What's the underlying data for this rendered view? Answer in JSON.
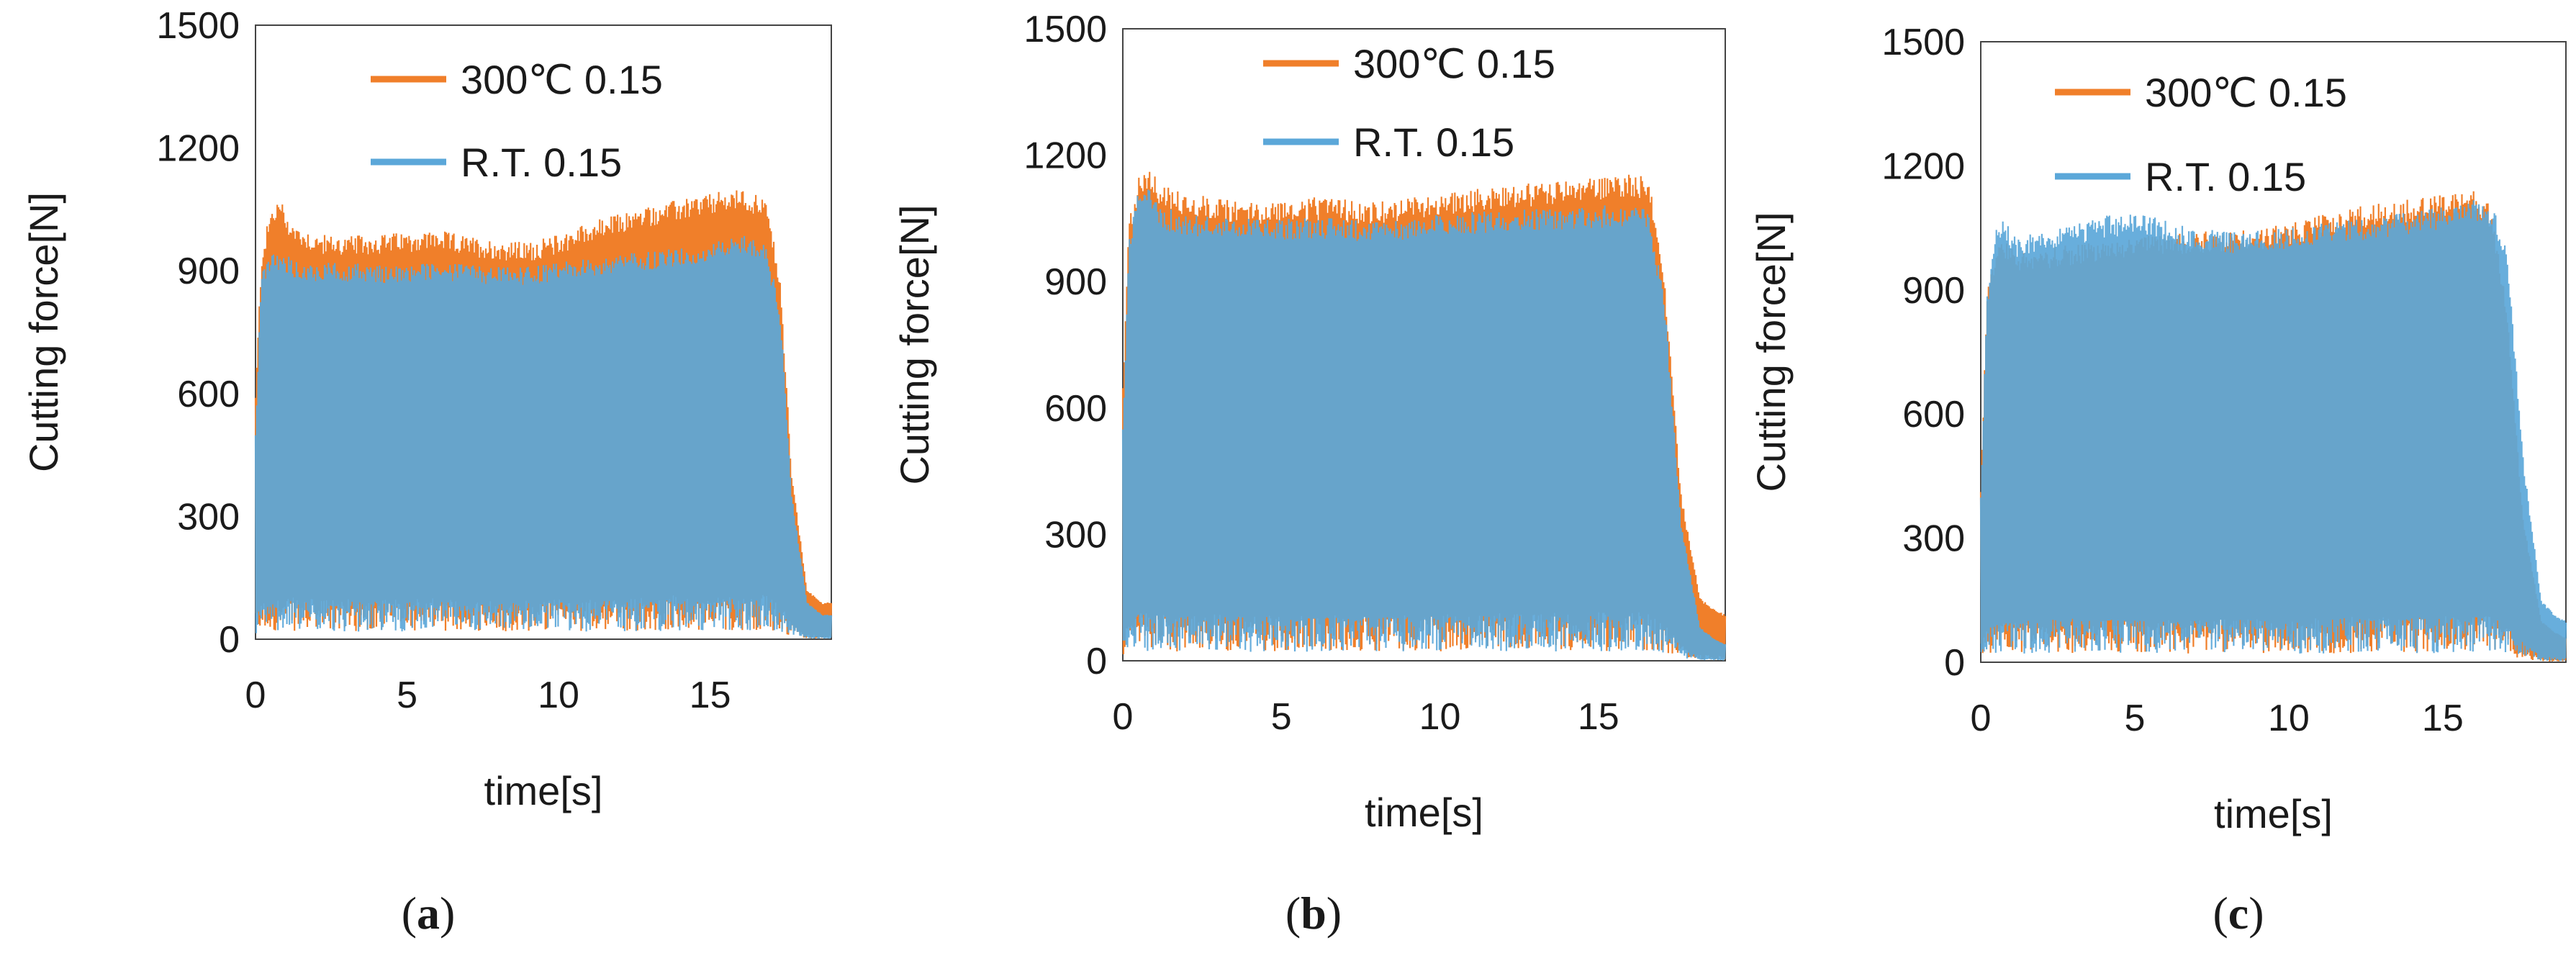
{
  "chart_data": [
    {
      "id": "a",
      "type": "line",
      "caption": "a",
      "xlabel": "time[s]",
      "ylabel": "Cutting force[N]",
      "xlim": [
        0,
        19
      ],
      "ylim": [
        0,
        1500
      ],
      "xticks": [
        "0",
        "5",
        "10",
        "15"
      ],
      "yticks": [
        "0",
        "300",
        "600",
        "900",
        "1200",
        "1500"
      ],
      "legend_position": "top-center",
      "series": [
        {
          "name": "300℃ 0.15",
          "color": "#f07f2a",
          "envelope_x": [
            0,
            0.2,
            0.5,
            0.8,
            1.2,
            2,
            3,
            4,
            5,
            6,
            7,
            8,
            9,
            10,
            11,
            12,
            13,
            14,
            15,
            16,
            16.8,
            17.3,
            17.7,
            18.2,
            18.7,
            19
          ],
          "envelope_y": [
            600,
            950,
            1050,
            1080,
            1020,
            990,
            985,
            990,
            995,
            1000,
            985,
            975,
            970,
            990,
            1020,
            1040,
            1060,
            1075,
            1090,
            1100,
            1085,
            900,
            400,
            120,
            90,
            90
          ]
        },
        {
          "name": "R.T. 0.15",
          "color": "#5ba7d9",
          "envelope_x": [
            0,
            0.2,
            0.5,
            0.8,
            1.2,
            2,
            3,
            4,
            5,
            6,
            7,
            8,
            9,
            10,
            11,
            12,
            13,
            14,
            15,
            16,
            16.8,
            17.3,
            17.7,
            18.2,
            18.7,
            19
          ],
          "envelope_y": [
            500,
            900,
            940,
            950,
            930,
            920,
            920,
            915,
            915,
            920,
            915,
            910,
            910,
            920,
            930,
            940,
            950,
            955,
            965,
            990,
            970,
            820,
            350,
            90,
            60,
            60
          ]
        }
      ]
    },
    {
      "id": "b",
      "type": "line",
      "caption": "b",
      "xlabel": "time[s]",
      "ylabel": "Cutting force[N]",
      "xlim": [
        0,
        19
      ],
      "ylim": [
        0,
        1500
      ],
      "xticks": [
        "0",
        "5",
        "10",
        "15"
      ],
      "yticks": [
        "0",
        "300",
        "600",
        "900",
        "1200",
        "1500"
      ],
      "legend_position": "top-center",
      "series": [
        {
          "name": "300℃ 0.15",
          "color": "#f07f2a",
          "envelope_x": [
            0,
            0.2,
            0.5,
            0.8,
            1.2,
            2,
            3,
            4,
            5,
            6,
            7,
            8,
            9,
            10,
            11,
            12,
            13,
            14,
            15,
            16,
            16.6,
            17.1,
            17.6,
            18.2,
            18.7,
            19
          ],
          "envelope_y": [
            650,
            1050,
            1150,
            1180,
            1130,
            1110,
            1100,
            1090,
            1095,
            1100,
            1095,
            1090,
            1100,
            1110,
            1120,
            1130,
            1135,
            1140,
            1150,
            1160,
            1150,
            900,
            400,
            150,
            120,
            110
          ]
        },
        {
          "name": "R.T. 0.15",
          "color": "#5ba7d9",
          "envelope_x": [
            0,
            0.2,
            0.5,
            0.8,
            1.2,
            2,
            3,
            4,
            5,
            6,
            7,
            8,
            9,
            10,
            11,
            12,
            13,
            14,
            15,
            16,
            16.6,
            17.1,
            17.6,
            18.2,
            18.7,
            19
          ],
          "envelope_y": [
            550,
            1000,
            1120,
            1150,
            1080,
            1060,
            1055,
            1050,
            1050,
            1055,
            1050,
            1045,
            1050,
            1060,
            1065,
            1070,
            1075,
            1075,
            1080,
            1085,
            1070,
            850,
            330,
            80,
            50,
            40
          ]
        }
      ]
    },
    {
      "id": "c",
      "type": "line",
      "caption": "c",
      "xlabel": "time[s]",
      "ylabel": "Cutting force[N]",
      "xlim": [
        0,
        19
      ],
      "ylim": [
        0,
        1500
      ],
      "xticks": [
        "0",
        "5",
        "10",
        "15"
      ],
      "yticks": [
        "0",
        "300",
        "600",
        "900",
        "1200",
        "1500"
      ],
      "legend_position": "top-center",
      "series": [
        {
          "name": "300℃ 0.15",
          "color": "#f07f2a",
          "envelope_x": [
            0,
            0.2,
            0.5,
            0.8,
            1.2,
            2,
            3,
            4,
            5,
            6,
            7,
            8,
            9,
            10,
            11,
            12,
            13,
            14,
            15,
            16,
            16.6,
            17.1,
            17.6,
            18.2,
            18.7,
            19
          ],
          "envelope_y": [
            420,
            900,
            1000,
            1020,
            990,
            1000,
            1010,
            1020,
            1030,
            1035,
            1040,
            1045,
            1050,
            1060,
            1080,
            1100,
            1110,
            1120,
            1130,
            1150,
            1100,
            850,
            350,
            100,
            70,
            60
          ]
        },
        {
          "name": "R.T. 0.15",
          "color": "#5ba7d9",
          "envelope_x": [
            0,
            0.2,
            0.5,
            0.8,
            1.2,
            2,
            3,
            4,
            5,
            6,
            7,
            8,
            9,
            10,
            11,
            12,
            13,
            14,
            15,
            16,
            16.6,
            17.1,
            17.6,
            18.2,
            18.7,
            19
          ],
          "envelope_y": [
            400,
            880,
            1060,
            1070,
            1030,
            1050,
            1060,
            1080,
            1085,
            1070,
            1050,
            1040,
            1045,
            1050,
            1060,
            1070,
            1080,
            1090,
            1100,
            1120,
            1110,
            1000,
            500,
            150,
            110,
            100
          ]
        }
      ]
    }
  ]
}
